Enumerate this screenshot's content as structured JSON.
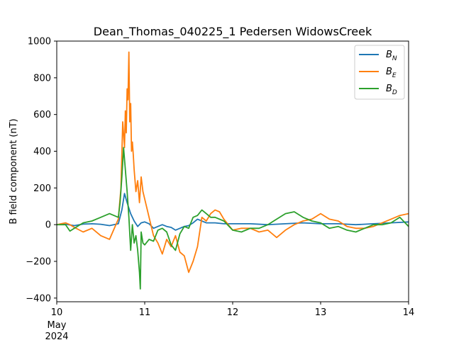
{
  "chart_data": {
    "type": "line",
    "title": "Dean_Thomas_040225_1 Pedersen WidowsCreek",
    "xlabel": "",
    "ylabel": "B field component (nT)",
    "x_date_base": "May 2024",
    "xlim": [
      10,
      14
    ],
    "ylim": [
      -420,
      1000
    ],
    "x_ticks": [
      10,
      11,
      12,
      13,
      14
    ],
    "x_tick_labels": [
      "10",
      "11",
      "12",
      "13",
      "14"
    ],
    "x_tick_sublabels": [
      "May",
      "2024"
    ],
    "y_ticks": [
      -400,
      -200,
      0,
      200,
      400,
      600,
      800,
      1000
    ],
    "y_tick_labels": [
      "−400",
      "−200",
      "0",
      "200",
      "400",
      "600",
      "800",
      "1000"
    ],
    "grid": false,
    "legend_position": "top-right",
    "series": [
      {
        "name": "B_N",
        "legend_main": "B",
        "legend_sub": "N",
        "color": "#1f77b4",
        "x": [
          10.0,
          10.1,
          10.2,
          10.3,
          10.4,
          10.5,
          10.6,
          10.7,
          10.74,
          10.77,
          10.8,
          10.84,
          10.88,
          10.92,
          10.96,
          11.0,
          11.05,
          11.1,
          11.15,
          11.2,
          11.25,
          11.3,
          11.35,
          11.4,
          11.45,
          11.5,
          11.55,
          11.6,
          11.65,
          11.7,
          11.8,
          11.9,
          12.0,
          12.2,
          12.4,
          12.6,
          12.8,
          13.0,
          13.2,
          13.4,
          13.6,
          13.8,
          14.0
        ],
        "y": [
          0,
          2,
          -5,
          3,
          5,
          2,
          -5,
          5,
          80,
          170,
          120,
          60,
          20,
          -10,
          10,
          15,
          5,
          -20,
          -10,
          0,
          -10,
          -15,
          -30,
          -20,
          -10,
          -5,
          10,
          30,
          20,
          10,
          10,
          5,
          5,
          5,
          0,
          5,
          10,
          5,
          5,
          0,
          5,
          10,
          15
        ]
      },
      {
        "name": "B_E",
        "legend_main": "B",
        "legend_sub": "E",
        "color": "#ff7f0e",
        "x": [
          10.0,
          10.05,
          10.1,
          10.15,
          10.2,
          10.3,
          10.4,
          10.5,
          10.6,
          10.7,
          10.73,
          10.75,
          10.77,
          10.78,
          10.79,
          10.8,
          10.81,
          10.82,
          10.83,
          10.84,
          10.85,
          10.86,
          10.87,
          10.88,
          10.9,
          10.92,
          10.94,
          10.96,
          10.98,
          11.0,
          11.03,
          11.06,
          11.1,
          11.15,
          11.2,
          11.25,
          11.3,
          11.35,
          11.4,
          11.45,
          11.5,
          11.55,
          11.6,
          11.65,
          11.7,
          11.75,
          11.8,
          11.85,
          11.9,
          12.0,
          12.1,
          12.2,
          12.3,
          12.4,
          12.5,
          12.6,
          12.7,
          12.8,
          12.9,
          13.0,
          13.1,
          13.2,
          13.3,
          13.4,
          13.5,
          13.6,
          13.7,
          13.8,
          13.9,
          14.0
        ],
        "y": [
          0,
          5,
          10,
          0,
          -15,
          -40,
          -20,
          -60,
          -80,
          30,
          200,
          560,
          420,
          620,
          500,
          740,
          680,
          940,
          560,
          660,
          400,
          450,
          380,
          300,
          180,
          240,
          120,
          260,
          180,
          140,
          80,
          20,
          -60,
          -100,
          -160,
          -80,
          -120,
          -60,
          -150,
          -170,
          -260,
          -200,
          -120,
          40,
          20,
          60,
          80,
          70,
          30,
          -30,
          -20,
          -20,
          -40,
          -30,
          -70,
          -30,
          0,
          20,
          30,
          60,
          30,
          20,
          -10,
          -20,
          -20,
          -10,
          10,
          30,
          50,
          60
        ]
      },
      {
        "name": "B_D",
        "legend_main": "B",
        "legend_sub": "D",
        "color": "#2ca02c",
        "x": [
          10.0,
          10.1,
          10.15,
          10.2,
          10.3,
          10.4,
          10.5,
          10.6,
          10.7,
          10.72,
          10.74,
          10.76,
          10.78,
          10.8,
          10.82,
          10.84,
          10.86,
          10.88,
          10.9,
          10.92,
          10.94,
          10.95,
          10.96,
          10.98,
          11.0,
          11.05,
          11.1,
          11.15,
          11.2,
          11.25,
          11.3,
          11.35,
          11.4,
          11.45,
          11.5,
          11.55,
          11.6,
          11.65,
          11.7,
          11.75,
          11.8,
          11.9,
          12.0,
          12.1,
          12.2,
          12.3,
          12.4,
          12.5,
          12.6,
          12.7,
          12.8,
          12.9,
          13.0,
          13.1,
          13.2,
          13.3,
          13.4,
          13.5,
          13.6,
          13.7,
          13.8,
          13.9,
          14.0
        ],
        "y": [
          0,
          0,
          -35,
          -20,
          10,
          20,
          40,
          60,
          40,
          120,
          260,
          420,
          300,
          180,
          40,
          -140,
          0,
          -100,
          -60,
          -140,
          -260,
          -350,
          -40,
          -100,
          -110,
          -80,
          -90,
          -30,
          -20,
          -40,
          -110,
          -140,
          -50,
          -10,
          -20,
          40,
          50,
          80,
          60,
          40,
          40,
          20,
          -30,
          -40,
          -20,
          -20,
          0,
          30,
          60,
          70,
          40,
          20,
          10,
          -20,
          -10,
          -30,
          -40,
          -20,
          0,
          0,
          10,
          40,
          -10
        ]
      }
    ]
  }
}
